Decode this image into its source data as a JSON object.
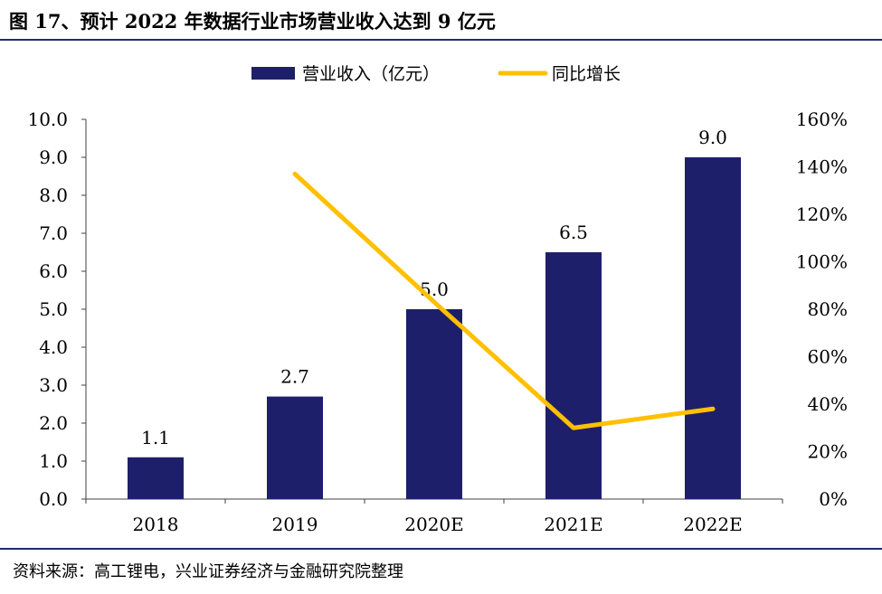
{
  "header": {
    "title": "图 17、预计 2022 年数据行业市场营业收入达到 9 亿元"
  },
  "footer": {
    "source": "资料来源：高工锂电，兴业证券经济与金融研究院整理"
  },
  "colors": {
    "bar": "#1e1f6b",
    "line": "#ffc000",
    "rule": "#1f2d6b",
    "axis": "#404040"
  },
  "chart_data": {
    "type": "bar",
    "categories": [
      "2018",
      "2019",
      "2020E",
      "2021E",
      "2022E"
    ],
    "series": [
      {
        "name": "营业收入（亿元）",
        "type": "bar",
        "axis": "left",
        "values": [
          1.1,
          2.7,
          5.0,
          6.5,
          9.0
        ]
      },
      {
        "name": "同比增长",
        "type": "line",
        "axis": "right",
        "values": [
          null,
          1.37,
          0.83,
          0.3,
          0.38
        ]
      }
    ],
    "data_labels": [
      "1.1",
      "2.7",
      "5.0",
      "6.5",
      "9.0"
    ],
    "y_left": {
      "min": 0,
      "max": 10,
      "step": 1,
      "tick_labels": [
        "0.0",
        "1.0",
        "2.0",
        "3.0",
        "4.0",
        "5.0",
        "6.0",
        "7.0",
        "8.0",
        "9.0",
        "10.0"
      ]
    },
    "y_right": {
      "min": 0,
      "max": 1.6,
      "step": 0.2,
      "tick_labels": [
        "0%",
        "20%",
        "40%",
        "60%",
        "80%",
        "100%",
        "120%",
        "140%",
        "160%"
      ]
    },
    "legend_position": "top-center",
    "grid": false
  }
}
